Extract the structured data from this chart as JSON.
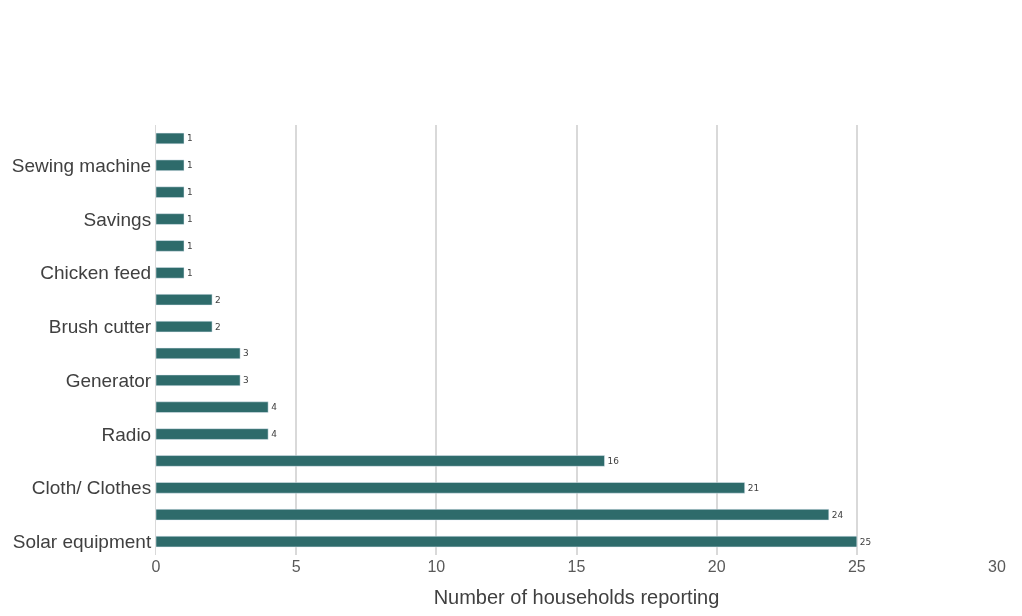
{
  "chart_data": {
    "type": "bar",
    "orientation": "horizontal",
    "xlabel": "Number of households reporting",
    "categories": [
      null,
      "Sewing machine",
      null,
      "Savings",
      null,
      "Chicken feed",
      null,
      "Brush cutter",
      null,
      "Generator",
      null,
      "Radio",
      null,
      "Cloth/ Clothes",
      null,
      "Solar equipment"
    ],
    "values": [
      1,
      1,
      1,
      1,
      1,
      1,
      2,
      2,
      3,
      3,
      4,
      4,
      16,
      21,
      24,
      25
    ],
    "color": "#2e6b6b",
    "xlim": [
      0,
      30
    ],
    "xticks": [
      0,
      5,
      10,
      15,
      20,
      25,
      30
    ],
    "grid": "x",
    "data_labels": true,
    "legend": false
  }
}
